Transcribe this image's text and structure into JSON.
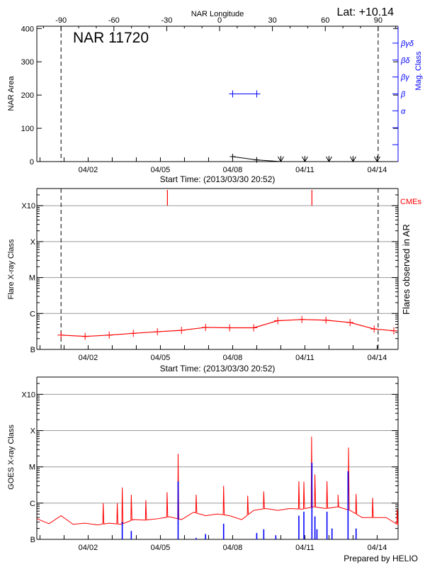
{
  "header": {
    "lat_label": "Lat: +10.14"
  },
  "footer": {
    "credit": "Prepared by HELIO"
  },
  "colors": {
    "axis": "#000000",
    "mag_class": "#0000ff",
    "flare": "#ff0000",
    "goes_long": "#ff0000",
    "goes_short": "#0000ff",
    "grid": "#999999"
  },
  "chart_data": [
    {
      "type": "line",
      "title": "NAR 11720",
      "top_axis_label": "NAR Longitude",
      "xlabel": "Start Time: (2013/03/30 20:52)",
      "ylabel": "NAR Area",
      "y2label": "Mag. Class",
      "xlim": [
        "2013-03-30T20:52",
        "2013-04-14T20:52"
      ],
      "ylim": [
        0,
        407
      ],
      "yticks": [
        0,
        100,
        200,
        300,
        400
      ],
      "xtick_labels": [
        "04/02",
        "04/05",
        "04/08",
        "04/11",
        "04/14"
      ],
      "longitude_ticks": [
        -90,
        -60,
        -30,
        0,
        30,
        60,
        90
      ],
      "limb_times": [
        "2013-03-31T21:00",
        "2013-04-14T01:00"
      ],
      "mag_class_ticks": [
        "",
        "",
        "α",
        "β",
        "βγ",
        "βδ",
        "βγδ"
      ],
      "area": {
        "x": [
          "2013-04-08T00:00",
          "2013-04-09T00:00",
          "2013-04-10T00:00",
          "2013-04-11T00:00",
          "2013-04-12T00:00",
          "2013-04-13T00:00",
          "2013-04-14T00:00"
        ],
        "y": [
          15,
          5,
          0,
          0,
          0,
          0,
          0
        ]
      },
      "mag_class": {
        "x": [
          "2013-04-08T00:00",
          "2013-04-09T00:00"
        ],
        "y": [
          "β",
          "β"
        ]
      }
    },
    {
      "type": "line",
      "xlabel": "Start Time: (2013/03/30 20:52)",
      "ylabel": "Flare X-ray Class",
      "y2label": "Flares observed in AR",
      "cme_label": "CMEs",
      "xlim": [
        "2013-03-30T20:52",
        "2013-04-14T20:52"
      ],
      "ylim": [
        "B1.0",
        "X30"
      ],
      "yscale": "log",
      "ytick_labels": [
        "B",
        "C",
        "M",
        "X",
        "X10"
      ],
      "xtick_labels": [
        "04/02",
        "04/05",
        "04/08",
        "04/11",
        "04/14"
      ],
      "grid": true,
      "limb_times": [
        "2013-03-31T21:00",
        "2013-04-14T01:00"
      ],
      "cme_times": [
        "2013-04-05T07:00",
        "2013-04-11T07:00"
      ],
      "flares": {
        "x": [
          "2013-03-31T21:00",
          "2013-04-01T21:00",
          "2013-04-02T21:00",
          "2013-04-03T21:00",
          "2013-04-04T21:00",
          "2013-04-05T21:00",
          "2013-04-06T21:00",
          "2013-04-07T21:00",
          "2013-04-08T21:00",
          "2013-04-09T21:00",
          "2013-04-10T21:00",
          "2013-04-11T21:00",
          "2013-04-12T21:00",
          "2013-04-13T21:00",
          "2013-04-14T21:00"
        ],
        "y": [
          "B2.5",
          "B2.3",
          "B2.5",
          "B2.8",
          "B3.1",
          "B3.4",
          "B4.1",
          "B4.0",
          "B4.0",
          "B6.3",
          "B6.8",
          "B6.5",
          "B5.6",
          "B3.7",
          "B3.3"
        ]
      }
    },
    {
      "type": "line",
      "ylabel": "GOES X-ray Class",
      "xlim": [
        "2013-03-30T20:52",
        "2013-04-14T20:52"
      ],
      "ylim": [
        "B1.0",
        "X30"
      ],
      "yscale": "log",
      "ytick_labels": [
        "B",
        "C",
        "M",
        "X",
        "X10"
      ],
      "xtick_labels": [
        "04/02",
        "04/05",
        "04/08",
        "04/11",
        "04/14"
      ],
      "grid": true,
      "long_channel": {
        "baseline_x": [
          "2013-03-30T21:00",
          "2013-03-31T09:00",
          "2013-03-31T21:00",
          "2013-04-01T09:00",
          "2013-04-01T21:00",
          "2013-04-02T09:00",
          "2013-04-02T21:00",
          "2013-04-03T09:00",
          "2013-04-03T21:00",
          "2013-04-04T09:00",
          "2013-04-04T21:00",
          "2013-04-05T09:00",
          "2013-04-05T21:00",
          "2013-04-06T09:00",
          "2013-04-06T21:00",
          "2013-04-07T09:00",
          "2013-04-07T21:00",
          "2013-04-08T09:00",
          "2013-04-08T21:00",
          "2013-04-09T09:00",
          "2013-04-09T21:00",
          "2013-04-10T09:00",
          "2013-04-10T21:00",
          "2013-04-11T09:00",
          "2013-04-11T21:00",
          "2013-04-12T09:00",
          "2013-04-12T21:00",
          "2013-04-13T09:00",
          "2013-04-13T21:00",
          "2013-04-14T09:00",
          "2013-04-14T20:50"
        ],
        "baseline_y": [
          "B3.7",
          "B2.7",
          "B4.5",
          "B2.6",
          "B2.8",
          "B2.5",
          "B2.8",
          "B2.6",
          "B3.5",
          "B3.4",
          "B3.7",
          "B4.2",
          "B3.5",
          "B5.6",
          "B4.5",
          "B5.0",
          "B4.5",
          "B3.5",
          "B6.3",
          "B7.1",
          "B6.3",
          "B7.1",
          "B6.8",
          "B7.9",
          "B7.1",
          "B7.9",
          "B6.3",
          "B4.0",
          "B4.0",
          "B4.0",
          "B2.5"
        ],
        "peaks_x": [
          "2013-04-02T15:00",
          "2013-04-03T05:00",
          "2013-04-03T10:00",
          "2013-04-03T19:00",
          "2013-04-04T09:30",
          "2013-04-05T06:40",
          "2013-04-05T17:40",
          "2013-04-06T11:40",
          "2013-04-07T15:00",
          "2013-04-08T15:00",
          "2013-04-09T07:00",
          "2013-04-10T18:00",
          "2013-04-10T23:00",
          "2013-04-11T06:40",
          "2013-04-11T10:00",
          "2013-04-11T22:00",
          "2013-04-12T09:00",
          "2013-04-12T19:30",
          "2013-04-13T03:00",
          "2013-04-13T19:30",
          "2013-04-14T20:00"
        ],
        "peaks_y": [
          "C1.0",
          "C1.0",
          "C2.7",
          "C1.7",
          "C1.2",
          "C2.0",
          "M2.3",
          "C1.7",
          "C3.0",
          "C1.6",
          "C2.1",
          "C4.0",
          "C3.9",
          "M6.8",
          "C6.2",
          "C4.0",
          "C1.7",
          "M3.4",
          "C1.8",
          "C1.4",
          "B6.8"
        ]
      },
      "short_channel": {
        "x": [
          "2013-04-03T10:00",
          "2013-04-03T19:00",
          "2013-04-05T17:40",
          "2013-04-06T11:40",
          "2013-04-06T21:00",
          "2013-04-07T15:00",
          "2013-04-09T00:00",
          "2013-04-09T07:00",
          "2013-04-09T19:00",
          "2013-04-10T18:00",
          "2013-04-10T23:00",
          "2013-04-11T07:00",
          "2013-04-11T10:00",
          "2013-04-11T12:00",
          "2013-04-11T22:00",
          "2013-04-12T03:00",
          "2013-04-12T19:00",
          "2013-04-13T03:00",
          "2013-04-13T08:40"
        ],
        "y": [
          "B3.0",
          "B1.7",
          "C4.0",
          "B1.1",
          "B1.4",
          "B2.7",
          "B1.5",
          "B1.9",
          "B1.3",
          "B4.5",
          "B5.8",
          "M1.3",
          "B4.3",
          "B1.9",
          "B5.8",
          "B2.0",
          "C7.6",
          "B2.0",
          "B1.0"
        ]
      }
    }
  ]
}
